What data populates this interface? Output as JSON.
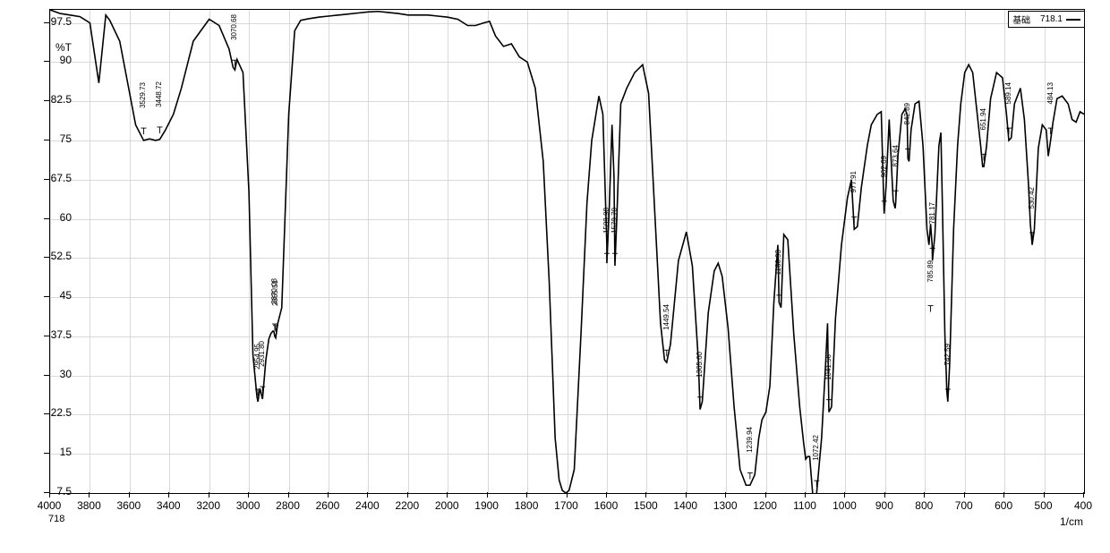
{
  "legend": {
    "label": "基础",
    "sample_id": "718.1"
  },
  "axes": {
    "x_label_bottom_left": "718",
    "x_unit": "1/cm",
    "y_unit": "%T",
    "xlim": [
      4000,
      400
    ],
    "ylim": [
      7.5,
      100
    ],
    "x_ticks": [
      4000,
      3800,
      3600,
      3400,
      3200,
      3000,
      2800,
      2600,
      2400,
      2200,
      2000,
      1900,
      1800,
      1700,
      1600,
      1500,
      1400,
      1300,
      1200,
      1100,
      1000,
      900,
      800,
      700,
      600,
      500,
      400
    ],
    "x_tick_labels": [
      "4000",
      "3800",
      "3600",
      "3400",
      "3200",
      "3000",
      "2800",
      "2600",
      "2400",
      "2200",
      "2000",
      "1900",
      "1800",
      "1700",
      "1600",
      "1500",
      "1400",
      "1300",
      "1200",
      "1100",
      "1000",
      "900",
      "800",
      "700",
      "600",
      "500",
      "400"
    ],
    "y_ticks": [
      97.5,
      90,
      82.5,
      75,
      67.5,
      60,
      52.5,
      45,
      37.5,
      30,
      22.5,
      15,
      7.5
    ],
    "y_tick_labels": [
      "97.5",
      "90",
      "82.5",
      "75",
      "67.5",
      "60",
      "52.5",
      "45",
      "37.5",
      "30",
      "22.5",
      "15",
      "7.5"
    ],
    "grid_color": "#d9d9d9",
    "line_color": "#000000",
    "line_width": 1.6,
    "tick_fontsize": 12
  },
  "chart": {
    "type": "line",
    "background_color": "#ffffff",
    "data": [
      [
        4000,
        100.0
      ],
      [
        3950,
        99.3
      ],
      [
        3900,
        99.0
      ],
      [
        3850,
        98.7
      ],
      [
        3800,
        97.5
      ],
      [
        3755,
        86.0
      ],
      [
        3720,
        99.0
      ],
      [
        3700,
        98.0
      ],
      [
        3650,
        94.0
      ],
      [
        3600,
        84.0
      ],
      [
        3570,
        78.0
      ],
      [
        3529.73,
        75.0
      ],
      [
        3500,
        75.3
      ],
      [
        3470,
        75.0
      ],
      [
        3448.72,
        75.2
      ],
      [
        3420,
        77.0
      ],
      [
        3380,
        80.0
      ],
      [
        3340,
        85.0
      ],
      [
        3280,
        94.0
      ],
      [
        3200,
        98.2
      ],
      [
        3150,
        97.0
      ],
      [
        3100,
        92.5
      ],
      [
        3080,
        89.0
      ],
      [
        3070.68,
        88.5
      ],
      [
        3060,
        90.5
      ],
      [
        3030,
        88.0
      ],
      [
        3000,
        65.0
      ],
      [
        2980,
        34.0
      ],
      [
        2960,
        26.0
      ],
      [
        2954.95,
        25.0
      ],
      [
        2945,
        27.5
      ],
      [
        2931.8,
        25.5
      ],
      [
        2915,
        33.0
      ],
      [
        2900,
        37.0
      ],
      [
        2890,
        38.0
      ],
      [
        2880,
        38.5
      ],
      [
        2875,
        38.5
      ],
      [
        2870.08,
        37.5
      ],
      [
        2865.51,
        37.2
      ],
      [
        2855,
        40.0
      ],
      [
        2835,
        43.0
      ],
      [
        2800,
        80.0
      ],
      [
        2770,
        96.0
      ],
      [
        2740,
        98.0
      ],
      [
        2700,
        98.3
      ],
      [
        2650,
        98.6
      ],
      [
        2600,
        98.8
      ],
      [
        2550,
        99.0
      ],
      [
        2500,
        99.2
      ],
      [
        2450,
        99.4
      ],
      [
        2400,
        99.6
      ],
      [
        2350,
        99.7
      ],
      [
        2300,
        99.5
      ],
      [
        2250,
        99.3
      ],
      [
        2200,
        99.0
      ],
      [
        2150,
        99.0
      ],
      [
        2100,
        99.0
      ],
      [
        2050,
        98.8
      ],
      [
        2000,
        98.6
      ],
      [
        1975,
        98.2
      ],
      [
        1950,
        97.0
      ],
      [
        1930,
        97.0
      ],
      [
        1910,
        97.5
      ],
      [
        1895,
        97.8
      ],
      [
        1880,
        95.0
      ],
      [
        1860,
        93.0
      ],
      [
        1840,
        93.5
      ],
      [
        1820,
        91.0
      ],
      [
        1800,
        90.0
      ],
      [
        1780,
        85.0
      ],
      [
        1760,
        71.0
      ],
      [
        1745,
        48.0
      ],
      [
        1730,
        18.0
      ],
      [
        1720,
        10.0
      ],
      [
        1712,
        8.0
      ],
      [
        1703,
        7.5
      ],
      [
        1695,
        8.0
      ],
      [
        1682,
        12.0
      ],
      [
        1665,
        38.0
      ],
      [
        1650,
        63.0
      ],
      [
        1638,
        75.0
      ],
      [
        1620,
        83.5
      ],
      [
        1610,
        80.0
      ],
      [
        1600,
        55.0
      ],
      [
        1599.98,
        51.5
      ],
      [
        1594,
        62.0
      ],
      [
        1587,
        78.0
      ],
      [
        1582,
        68.0
      ],
      [
        1579.7,
        51.0
      ],
      [
        1575,
        60.0
      ],
      [
        1565,
        82.0
      ],
      [
        1550,
        85.0
      ],
      [
        1530,
        88.0
      ],
      [
        1510,
        89.5
      ],
      [
        1495,
        84.0
      ],
      [
        1480,
        62.0
      ],
      [
        1465,
        40.0
      ],
      [
        1455,
        33.0
      ],
      [
        1449.54,
        32.5
      ],
      [
        1440,
        36.0
      ],
      [
        1420,
        52.0
      ],
      [
        1400,
        57.5
      ],
      [
        1385,
        51.0
      ],
      [
        1370,
        33.0
      ],
      [
        1365.6,
        23.5
      ],
      [
        1360,
        25.0
      ],
      [
        1345,
        42.0
      ],
      [
        1330,
        50.0
      ],
      [
        1320,
        51.5
      ],
      [
        1310,
        49.0
      ],
      [
        1295,
        39.0
      ],
      [
        1280,
        24.0
      ],
      [
        1265,
        12.0
      ],
      [
        1250,
        9.0
      ],
      [
        1239.94,
        9.0
      ],
      [
        1228,
        11.0
      ],
      [
        1218,
        18.0
      ],
      [
        1210,
        21.5
      ],
      [
        1200,
        23.0
      ],
      [
        1190,
        28.0
      ],
      [
        1180,
        44.0
      ],
      [
        1170,
        55.0
      ],
      [
        1166.93,
        44.0
      ],
      [
        1162,
        43.0
      ],
      [
        1155,
        57.0
      ],
      [
        1145,
        56.0
      ],
      [
        1130,
        38.0
      ],
      [
        1115,
        24.0
      ],
      [
        1105,
        17.0
      ],
      [
        1100,
        14.0
      ],
      [
        1095,
        14.5
      ],
      [
        1090,
        14.5
      ],
      [
        1082,
        7.0
      ],
      [
        1076,
        7.2
      ],
      [
        1072.42,
        7.5
      ],
      [
        1060,
        18.0
      ],
      [
        1050,
        32.0
      ],
      [
        1045,
        40.0
      ],
      [
        1041.56,
        23.0
      ],
      [
        1035,
        24.0
      ],
      [
        1025,
        41.0
      ],
      [
        1010,
        55.0
      ],
      [
        995,
        64.0
      ],
      [
        985,
        67.5
      ],
      [
        977.91,
        58.0
      ],
      [
        970,
        58.5
      ],
      [
        960,
        66.0
      ],
      [
        945,
        74.0
      ],
      [
        935,
        78.0
      ],
      [
        920,
        80.0
      ],
      [
        910,
        80.5
      ],
      [
        905,
        67.0
      ],
      [
        902.69,
        61.0
      ],
      [
        898,
        66.0
      ],
      [
        890,
        79.0
      ],
      [
        880,
        63.5
      ],
      [
        875,
        62.0
      ],
      [
        873.64,
        63.0
      ],
      [
        868,
        72.0
      ],
      [
        858,
        80.0
      ],
      [
        850,
        81.0
      ],
      [
        845,
        80.0
      ],
      [
        842.89,
        71.5
      ],
      [
        840,
        71.0
      ],
      [
        835,
        77.0
      ],
      [
        825,
        82.0
      ],
      [
        815,
        82.5
      ],
      [
        805,
        74.0
      ],
      [
        795,
        58.0
      ],
      [
        790,
        55.0
      ],
      [
        785.89,
        59.0
      ],
      [
        782,
        55.0
      ],
      [
        781.17,
        52.0
      ],
      [
        775,
        57.0
      ],
      [
        765,
        74.0
      ],
      [
        760,
        76.5
      ],
      [
        756,
        62.0
      ],
      [
        750,
        38.0
      ],
      [
        745,
        27.0
      ],
      [
        742.59,
        25.0
      ],
      [
        738,
        32.0
      ],
      [
        728,
        58.0
      ],
      [
        718,
        74.0
      ],
      [
        710,
        82.0
      ],
      [
        700,
        88.0
      ],
      [
        690,
        89.5
      ],
      [
        680,
        88.0
      ],
      [
        670,
        81.0
      ],
      [
        660,
        74.0
      ],
      [
        655,
        70.0
      ],
      [
        651.94,
        70.0
      ],
      [
        645,
        74.0
      ],
      [
        635,
        83.0
      ],
      [
        620,
        88.0
      ],
      [
        605,
        87.0
      ],
      [
        595,
        80.0
      ],
      [
        589.14,
        75.0
      ],
      [
        583,
        75.5
      ],
      [
        575,
        82.0
      ],
      [
        560,
        85.0
      ],
      [
        550,
        79.0
      ],
      [
        540,
        67.0
      ],
      [
        535,
        59.0
      ],
      [
        530.42,
        55.0
      ],
      [
        525,
        58.0
      ],
      [
        515,
        73.5
      ],
      [
        505,
        78.0
      ],
      [
        495,
        77.0
      ],
      [
        490,
        72.0
      ],
      [
        484.13,
        75.0
      ],
      [
        478,
        78.5
      ],
      [
        468,
        83.0
      ],
      [
        455,
        83.5
      ],
      [
        440,
        82.0
      ],
      [
        430,
        79.0
      ],
      [
        420,
        78.5
      ],
      [
        410,
        80.5
      ],
      [
        400,
        80.0
      ]
    ]
  },
  "peaks": [
    {
      "wavenumber": "3529.73",
      "x": 3529.73,
      "y_top": 76.0
    },
    {
      "wavenumber": "3448.72",
      "x": 3448.72,
      "y_top": 76.2
    },
    {
      "wavenumber": "3070.68",
      "x": 3070.68,
      "y_top": 89.0
    },
    {
      "wavenumber": "2954.95",
      "x": 2954.95,
      "y_top": 26.0
    },
    {
      "wavenumber": "2931.80",
      "x": 2931.8,
      "y_top": 26.5
    },
    {
      "wavenumber": "2865.51",
      "x": 2865.51,
      "y_top": 38.2
    },
    {
      "wavenumber": "2870.08",
      "x": 2870.08,
      "y_top": 38.5
    },
    {
      "wavenumber": "1599.98",
      "x": 1599.98,
      "y_top": 52.0
    },
    {
      "wavenumber": "1579.70",
      "x": 1579.7,
      "y_top": 52.0
    },
    {
      "wavenumber": "1449.54",
      "x": 1449.54,
      "y_top": 33.5
    },
    {
      "wavenumber": "1365.60",
      "x": 1365.6,
      "y_top": 24.5
    },
    {
      "wavenumber": "1239.94",
      "x": 1239.94,
      "y_top": 10.0
    },
    {
      "wavenumber": "1166.93",
      "x": 1166.93,
      "y_top": 44.0
    },
    {
      "wavenumber": "1072.42",
      "x": 1072.42,
      "y_top": 8.5
    },
    {
      "wavenumber": "1041.56",
      "x": 1041.56,
      "y_top": 24.0
    },
    {
      "wavenumber": "977.91",
      "x": 977.91,
      "y_top": 59.0
    },
    {
      "wavenumber": "902.69",
      "x": 902.69,
      "y_top": 62.0
    },
    {
      "wavenumber": "873.64",
      "x": 873.64,
      "y_top": 64.0
    },
    {
      "wavenumber": "842.89",
      "x": 842.89,
      "y_top": 72.0
    },
    {
      "wavenumber": "785.89",
      "x": 785.89,
      "y_top": 42.0
    },
    {
      "wavenumber": "781.17",
      "x": 781.17,
      "y_top": 53.0
    },
    {
      "wavenumber": "742.59",
      "x": 742.59,
      "y_top": 26.0
    },
    {
      "wavenumber": "651.94",
      "x": 651.94,
      "y_top": 71.0
    },
    {
      "wavenumber": "589.14",
      "x": 589.14,
      "y_top": 76.0
    },
    {
      "wavenumber": "530.42",
      "x": 530.42,
      "y_top": 56.0
    },
    {
      "wavenumber": "484.13",
      "x": 484.13,
      "y_top": 76.0
    }
  ]
}
